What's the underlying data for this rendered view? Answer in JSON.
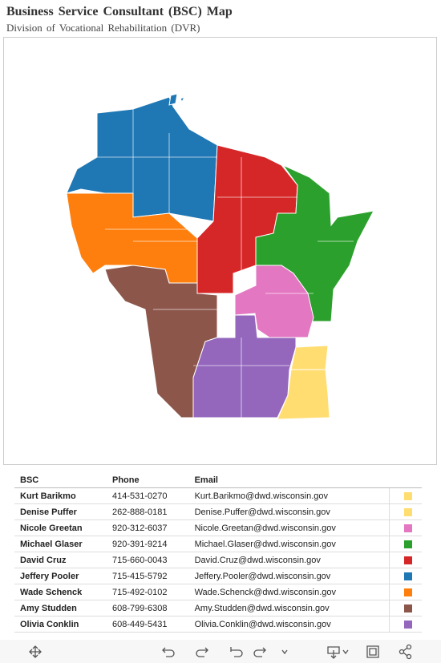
{
  "header": {
    "title": "Business Service Consultant (BSC) Map",
    "subtitle": "Division of Vocational Rehabilitation (DVR)"
  },
  "table": {
    "columns": [
      "BSC",
      "Phone",
      "Email"
    ],
    "rows": [
      {
        "bsc": "Kurt Barikmo",
        "phone": "414-531-0270",
        "email": "Kurt.Barikmo@dwd.wisconsin.gov",
        "color": "#ffdd71"
      },
      {
        "bsc": "Denise Puffer",
        "phone": "262-888-0181",
        "email": "Denise.Puffer@dwd.wisconsin.gov",
        "color": "#ffdd71"
      },
      {
        "bsc": "Nicole Greetan",
        "phone": "920-312-6037",
        "email": "Nicole.Greetan@dwd.wisconsin.gov",
        "color": "#e377c2"
      },
      {
        "bsc": "Michael Glaser",
        "phone": "920-391-9214",
        "email": "Michael.Glaser@dwd.wisconsin.gov",
        "color": "#2ca02c"
      },
      {
        "bsc": "David Cruz",
        "phone": "715-660-0043",
        "email": "David.Cruz@dwd.wisconsin.gov",
        "color": "#d62728"
      },
      {
        "bsc": "Jeffery Pooler",
        "phone": "715-415-5792",
        "email": "Jeffery.Pooler@dwd.wisconsin.gov",
        "color": "#1f77b4"
      },
      {
        "bsc": "Wade Schenck",
        "phone": "715-492-0102",
        "email": "Wade.Schenck@dwd.wisconsin.gov",
        "color": "#ff7f0e"
      },
      {
        "bsc": "Amy Studden",
        "phone": "608-799-6308",
        "email": "Amy.Studden@dwd.wisconsin.gov",
        "color": "#8c564b"
      },
      {
        "bsc": "Olivia Conklin",
        "phone": "608-449-5431",
        "email": "Olivia.Conklin@dwd.wisconsin.gov",
        "color": "#9467bd"
      }
    ]
  }
}
